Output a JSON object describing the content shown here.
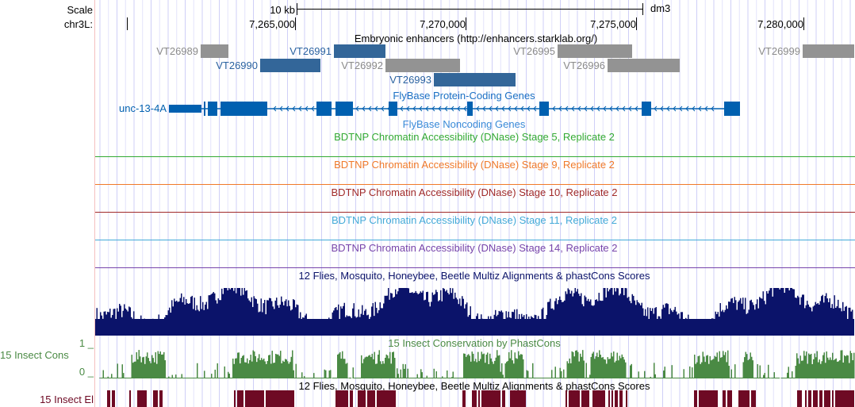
{
  "ruler": {
    "scale_label": "Scale",
    "scale_bar_label": "10 kb",
    "assembly": "dm3",
    "chrom_label": "chr3L:",
    "ticks": [
      "7,265,000",
      "7,270,000",
      "7,275,000",
      "7,280,000"
    ]
  },
  "enhancers": {
    "title": "Embryonic enhancers (http://enhancers.starklab.org/)",
    "items": [
      {
        "name": "VT26989",
        "color": "#939393"
      },
      {
        "name": "VT26991",
        "color": "#336699"
      },
      {
        "name": "VT26995",
        "color": "#939393"
      },
      {
        "name": "VT26999",
        "color": "#939393"
      },
      {
        "name": "VT26990",
        "color": "#336699"
      },
      {
        "name": "VT26992",
        "color": "#939393"
      },
      {
        "name": "VT26996",
        "color": "#939393"
      },
      {
        "name": "VT26993",
        "color": "#336699"
      }
    ]
  },
  "flybase_coding": {
    "title": "FlyBase Protein-Coding Genes",
    "gene": "unc-13-4A",
    "color": "#0060b0"
  },
  "flybase_noncoding": {
    "title": "FlyBase Noncoding Genes"
  },
  "dnase_tracks": [
    {
      "title": "BDTNP Chromatin Accessibility (DNase) Stage 5, Replicate 2",
      "color": "#33aa33"
    },
    {
      "title": "BDTNP Chromatin Accessibility (DNase) Stage 9, Replicate 2",
      "color": "#f07a2a"
    },
    {
      "title": "BDTNP Chromatin Accessibility (DNase) Stage 10, Replicate 2",
      "color": "#a02a2a"
    },
    {
      "title": "BDTNP Chromatin Accessibility (DNase) Stage 11, Replicate 2",
      "color": "#44aad8"
    },
    {
      "title": "BDTNP Chromatin Accessibility (DNase) Stage 14, Replicate 2",
      "color": "#7744aa"
    }
  ],
  "multiz": {
    "title": "12 Flies, Mosquito, Honeybee, Beetle Multiz Alignments & phastCons Scores",
    "color": "#0b136a"
  },
  "phastcons": {
    "title": "15 Insect Conservation by PhastCons",
    "side_label": "15 Insect Cons",
    "max_label": "1 _",
    "min_label": "0 _",
    "color": "#4a8a44"
  },
  "elements": {
    "title": "12 Flies, Mosquito, Honeybee, Beetle Multiz Alignments & phastCons Scores",
    "side_label": "15 Insect El",
    "color": "#6e0a24"
  }
}
